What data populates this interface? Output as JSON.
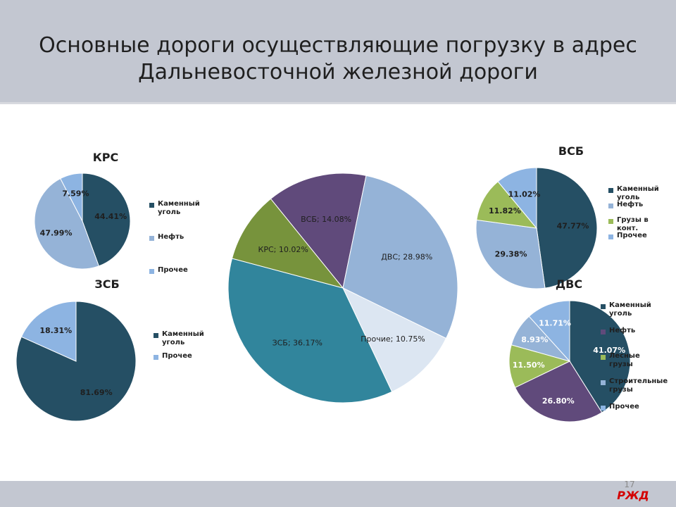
{
  "slide": {
    "title_line1": "Основные дороги осуществляющие погрузку в адрес",
    "title_line2": "Дальневосточной железной дороги",
    "page_number": "17",
    "logo_text": "РЖД"
  },
  "chart_data": [
    {
      "id": "main",
      "type": "pie",
      "title": "",
      "label_style": "name_value",
      "slices": [
        {
          "name": "ВСБ",
          "value": 14.08,
          "label": "ВСБ; 14.08%",
          "color": "#604a7b"
        },
        {
          "name": "ДВС",
          "value": 28.98,
          "label": "ДВС; 28.98%",
          "color": "#95b3d7"
        },
        {
          "name": "Прочие",
          "value": 10.75,
          "label": "Прочие; 10.75%",
          "color": "#dce6f2"
        },
        {
          "name": "ЗСБ",
          "value": 36.17,
          "label": "ЗСБ; 36.17%",
          "color": "#31859c"
        },
        {
          "name": "КРС",
          "value": 10.02,
          "label": "КРС; 10.02%",
          "color": "#77933c"
        }
      ]
    },
    {
      "id": "krs",
      "type": "pie",
      "title": "КРС",
      "slices": [
        {
          "name": "Каменный уголь",
          "value": 44.41,
          "label": "44.41%",
          "color": "#254f64"
        },
        {
          "name": "Нефть",
          "value": 47.99,
          "label": "47.99%",
          "color": "#95b3d7"
        },
        {
          "name": "Прочее",
          "value": 7.59,
          "label": "7.59%",
          "color": "#8db4e2"
        }
      ]
    },
    {
      "id": "zsb",
      "type": "pie",
      "title": "ЗСБ",
      "slices": [
        {
          "name": "Каменный уголь",
          "value": 81.69,
          "label": "81.69%",
          "color": "#254f64"
        },
        {
          "name": "Прочее",
          "value": 18.31,
          "label": "18.31%",
          "color": "#8db4e2"
        }
      ]
    },
    {
      "id": "vsb",
      "type": "pie",
      "title": "ВСБ",
      "slices": [
        {
          "name": "Каменный уголь",
          "value": 47.77,
          "label": "47.77%",
          "color": "#254f64"
        },
        {
          "name": "Нефть",
          "value": 29.38,
          "label": "29.38%",
          "color": "#95b3d7"
        },
        {
          "name": "Грузы в конт.",
          "value": 11.82,
          "label": "11.82%",
          "color": "#9bbb59"
        },
        {
          "name": "Прочее",
          "value": 11.02,
          "label": "11.02%",
          "color": "#8db4e2"
        }
      ]
    },
    {
      "id": "dvs",
      "type": "pie",
      "title": "ДВС",
      "slices": [
        {
          "name": "Каменный уголь",
          "value": 41.07,
          "label": "41.07%",
          "color": "#254f64"
        },
        {
          "name": "Нефть",
          "value": 26.8,
          "label": "26.80%",
          "color": "#604a7b"
        },
        {
          "name": "Лесные грузы",
          "value": 11.5,
          "label": "11.50%",
          "color": "#9bbb59"
        },
        {
          "name": "Строительные грузы",
          "value": 8.93,
          "label": "8.93%",
          "color": "#95b3d7"
        },
        {
          "name": "Прочее",
          "value": 11.71,
          "label": "11.71%",
          "color": "#8db4e2"
        }
      ]
    }
  ]
}
